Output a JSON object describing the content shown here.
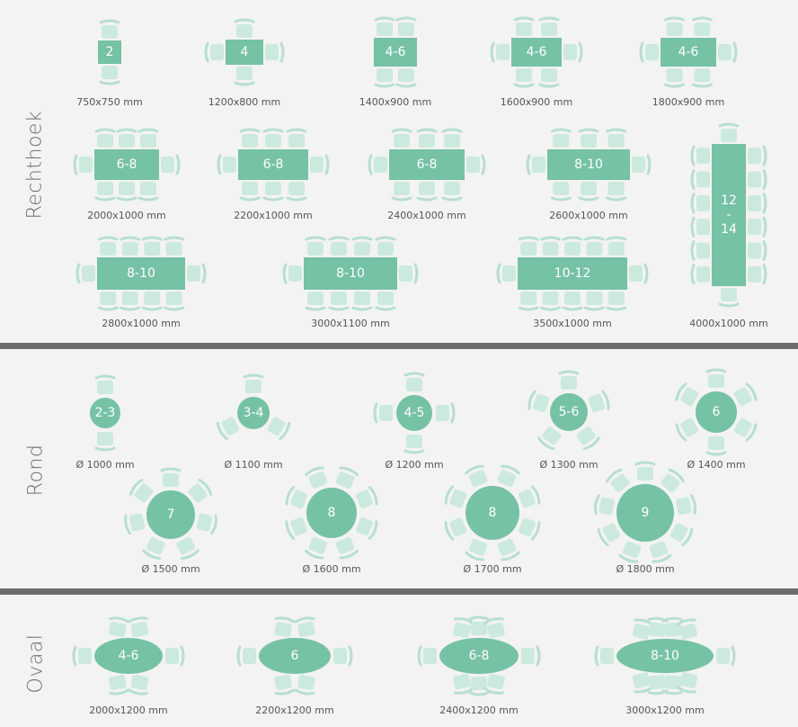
{
  "sections": {
    "rect": "Rechthoek",
    "round": "Rond",
    "oval": "Ovaal"
  },
  "colors": {
    "table": "#76c2a4",
    "chair": "#cce9dd",
    "chair_back": "#b7dfce",
    "divider": "#6d6d6d",
    "background": "#f3f3f3"
  },
  "tables": [
    {
      "shape": "rect",
      "label": "2",
      "size": "750x750 mm"
    },
    {
      "shape": "rect",
      "label": "4",
      "size": "1200x800 mm"
    },
    {
      "shape": "rect",
      "label": "4-6",
      "size": "1400x900 mm"
    },
    {
      "shape": "rect",
      "label": "4-6",
      "size": "1600x900 mm"
    },
    {
      "shape": "rect",
      "label": "4-6",
      "size": "1800x900 mm"
    },
    {
      "shape": "rect",
      "label": "6-8",
      "size": "2000x1000 mm"
    },
    {
      "shape": "rect",
      "label": "6-8",
      "size": "2200x1000 mm"
    },
    {
      "shape": "rect",
      "label": "6-8",
      "size": "2400x1000 mm"
    },
    {
      "shape": "rect",
      "label": "8-10",
      "size": "2600x1000 mm"
    },
    {
      "shape": "rect",
      "label": "8-10",
      "size": "2800x1000 mm"
    },
    {
      "shape": "rect",
      "label": "8-10",
      "size": "3000x1100 mm"
    },
    {
      "shape": "rect",
      "label": "10-12",
      "size": "3500x1000 mm"
    },
    {
      "shape": "rect-vertical",
      "label": "12\n-\n14",
      "size": "4000x1000 mm"
    },
    {
      "shape": "round",
      "label": "2-3",
      "size": "Ø 1000 mm"
    },
    {
      "shape": "round",
      "label": "3-4",
      "size": "Ø 1100 mm"
    },
    {
      "shape": "round",
      "label": "4-5",
      "size": "Ø 1200 mm"
    },
    {
      "shape": "round",
      "label": "5-6",
      "size": "Ø 1300 mm"
    },
    {
      "shape": "round",
      "label": "6",
      "size": "Ø 1400 mm"
    },
    {
      "shape": "round",
      "label": "7",
      "size": "Ø 1500 mm"
    },
    {
      "shape": "round",
      "label": "8",
      "size": "Ø 1600 mm"
    },
    {
      "shape": "round",
      "label": "8",
      "size": "Ø 1700 mm"
    },
    {
      "shape": "round",
      "label": "9",
      "size": "Ø 1800 mm"
    },
    {
      "shape": "oval",
      "label": "4-6",
      "size": "2000x1200 mm"
    },
    {
      "shape": "oval",
      "label": "6",
      "size": "2200x1200 mm"
    },
    {
      "shape": "oval",
      "label": "6-8",
      "size": "2400x1200 mm"
    },
    {
      "shape": "oval",
      "label": "8-10",
      "size": "3000x1200 mm"
    }
  ]
}
